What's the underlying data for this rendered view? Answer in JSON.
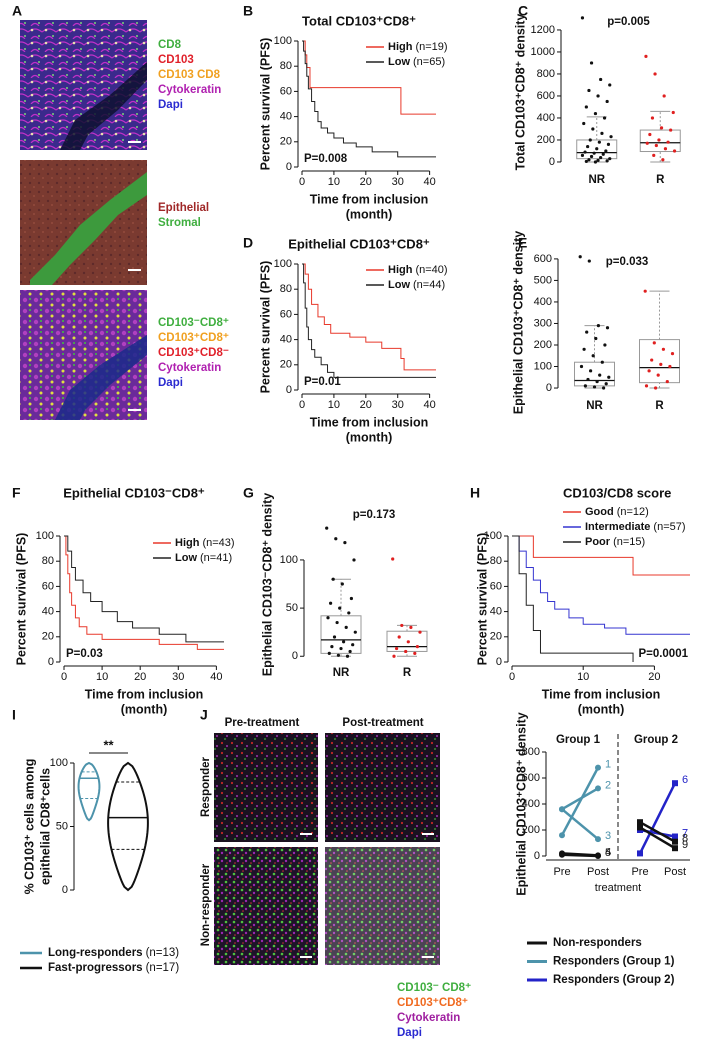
{
  "panel_labels": [
    "A",
    "B",
    "C",
    "D",
    "E",
    "F",
    "G",
    "H",
    "I",
    "J"
  ],
  "panel_a": {
    "legends": [
      [
        {
          "text": "CD8",
          "color": "#3fae3f"
        },
        {
          "text": "CD103",
          "color": "#e0202a"
        },
        {
          "text": "CD103 CD8",
          "color": "#f0a020"
        },
        {
          "text": "Cytokeratin",
          "color": "#b020b0"
        },
        {
          "text": "Dapi",
          "color": "#2a2ad0"
        }
      ],
      [
        {
          "text": "Epithelial",
          "color": "#a02828"
        },
        {
          "text": "Stromal",
          "color": "#3fae3f"
        }
      ],
      [
        {
          "text": "CD103⁻CD8⁺",
          "color": "#3fae3f"
        },
        {
          "text": "CD103⁺CD8⁺",
          "color": "#f0a020"
        },
        {
          "text": "CD103⁺CD8⁻",
          "color": "#e0202a"
        },
        {
          "text": "Cytokeratin",
          "color": "#b020b0"
        },
        {
          "text": "Dapi",
          "color": "#2a2ad0"
        }
      ]
    ]
  },
  "chart_data": [
    {
      "type": "km",
      "panel": "B",
      "title": "Total CD103⁺CD8⁺",
      "ylabel": "Percent survival (PFS)",
      "xlabel": [
        "Time from inclusion",
        "(month)"
      ],
      "pvalue": "P=0.008",
      "xlim": [
        0,
        42
      ],
      "ylim": [
        0,
        100
      ],
      "xticks": [
        0,
        10,
        20,
        30,
        40
      ],
      "yticks": [
        0,
        20,
        40,
        60,
        80,
        100
      ],
      "series": [
        {
          "name": "High",
          "n": "(n=19)",
          "color": "#e8392b",
          "x": [
            0,
            1,
            1,
            1.5,
            1.5,
            2.5,
            2.5,
            31,
            31,
            42
          ],
          "values": [
            100,
            100,
            89,
            89,
            79,
            79,
            63,
            63,
            42,
            42
          ]
        },
        {
          "name": "Low",
          "n": "(n=65)",
          "color": "#222222",
          "x": [
            0,
            0.5,
            0.5,
            1,
            1,
            1.5,
            1.5,
            2,
            2,
            3,
            3,
            4,
            4,
            5,
            5,
            6,
            6,
            8,
            8,
            10,
            10,
            13,
            13,
            17,
            17,
            22,
            22,
            30,
            30,
            42
          ],
          "values": [
            100,
            100,
            92,
            92,
            82,
            82,
            72,
            72,
            62,
            62,
            52,
            52,
            44,
            44,
            36,
            36,
            31,
            31,
            27,
            27,
            23,
            23,
            19,
            19,
            16,
            16,
            12,
            12,
            8,
            8
          ]
        }
      ]
    },
    {
      "type": "box",
      "panel": "C",
      "ylabel": "Total CD103⁺CD8⁺ density",
      "pvalue": "p=0.005",
      "ylim": [
        -73,
        1345
      ],
      "yticks": [
        0,
        200,
        400,
        600,
        800,
        1000,
        1200
      ],
      "groups": [
        {
          "name": "NR",
          "color": "#111111",
          "low": 0,
          "q1": 30,
          "median": 85,
          "q3": 200,
          "high": 410,
          "points": [
            1310,
            900,
            750,
            700,
            650,
            600,
            550,
            500,
            440,
            400,
            350,
            300,
            260,
            230,
            200,
            180,
            160,
            140,
            120,
            100,
            90,
            80,
            70,
            60,
            50,
            40,
            30,
            20,
            15,
            10,
            5,
            0
          ]
        },
        {
          "name": "R",
          "color": "#e02020",
          "low": 0,
          "q1": 95,
          "median": 175,
          "q3": 290,
          "high": 460,
          "points": [
            960,
            800,
            600,
            450,
            400,
            310,
            290,
            250,
            200,
            180,
            170,
            150,
            120,
            100,
            60,
            20
          ]
        }
      ]
    },
    {
      "type": "km",
      "panel": "D",
      "title": "Epithelial CD103⁺CD8⁺",
      "ylabel": "Percent survival (PFS)",
      "xlabel": [
        "Time from inclusion",
        "(month)"
      ],
      "pvalue": "P=0.01",
      "xlim": [
        0,
        42
      ],
      "ylim": [
        0,
        100
      ],
      "xticks": [
        0,
        10,
        20,
        30,
        40
      ],
      "yticks": [
        0,
        20,
        40,
        60,
        80,
        100
      ],
      "series": [
        {
          "name": "High",
          "n": "(n=40)",
          "color": "#e8392b",
          "x": [
            0,
            1,
            1,
            2,
            2,
            3,
            3,
            5,
            5,
            7,
            7,
            9,
            9,
            15,
            15,
            20,
            20,
            25,
            25,
            31,
            31,
            32,
            32,
            42
          ],
          "values": [
            100,
            100,
            92,
            92,
            80,
            80,
            68,
            68,
            58,
            58,
            52,
            52,
            45,
            45,
            42,
            42,
            38,
            38,
            33,
            33,
            25,
            25,
            16,
            16
          ]
        },
        {
          "name": "Low",
          "n": "(n=44)",
          "color": "#222222",
          "x": [
            0,
            0.5,
            0.5,
            1,
            1,
            1.5,
            1.5,
            2,
            2,
            3,
            3,
            4,
            4,
            6,
            6,
            8,
            8,
            10,
            10,
            42
          ],
          "values": [
            100,
            100,
            85,
            85,
            65,
            65,
            50,
            50,
            40,
            40,
            32,
            32,
            26,
            26,
            20,
            20,
            14,
            14,
            10,
            10
          ]
        }
      ]
    },
    {
      "type": "box",
      "panel": "E",
      "ylabel": "Epithelial CD103⁺CD8⁺ density",
      "pvalue": "p=0.033",
      "ylim": [
        -37,
        646
      ],
      "yticks": [
        0,
        100,
        200,
        300,
        400,
        500,
        600
      ],
      "groups": [
        {
          "name": "NR",
          "color": "#111111",
          "low": 0,
          "q1": 10,
          "median": 35,
          "q3": 120,
          "high": 290,
          "points": [
            610,
            590,
            290,
            280,
            260,
            230,
            200,
            180,
            150,
            120,
            100,
            80,
            60,
            50,
            40,
            30,
            20,
            10,
            5,
            0
          ]
        },
        {
          "name": "R",
          "color": "#e02020",
          "low": 0,
          "q1": 25,
          "median": 95,
          "q3": 225,
          "high": 450,
          "points": [
            450,
            210,
            180,
            160,
            130,
            110,
            100,
            80,
            60,
            30,
            10,
            0
          ]
        }
      ]
    },
    {
      "type": "km",
      "panel": "F",
      "title": "Epithelial CD103⁻CD8⁺",
      "ylabel": "Percent survival (PFS)",
      "xlabel": [
        "Time from inclusion",
        "(month)"
      ],
      "pvalue": "P=0.03",
      "xlim": [
        0,
        42
      ],
      "ylim": [
        0,
        100
      ],
      "xticks": [
        0,
        10,
        20,
        30,
        40
      ],
      "yticks": [
        0,
        20,
        40,
        60,
        80,
        100
      ],
      "series": [
        {
          "name": "High",
          "n": "(n=43)",
          "color": "#e8392b",
          "x": [
            0,
            0.5,
            0.5,
            1,
            1,
            1.5,
            1.5,
            2,
            2,
            3,
            3,
            4,
            4,
            6,
            6,
            10,
            10,
            25,
            25,
            35,
            35,
            42
          ],
          "values": [
            100,
            100,
            85,
            85,
            70,
            70,
            55,
            55,
            45,
            45,
            35,
            35,
            28,
            28,
            22,
            22,
            18,
            18,
            14,
            14,
            10,
            10
          ]
        },
        {
          "name": "Low",
          "n": "(n=41)",
          "color": "#222222",
          "x": [
            0,
            1,
            1,
            2,
            2,
            3,
            3,
            5,
            5,
            7,
            7,
            10,
            10,
            14,
            14,
            18,
            18,
            25,
            25,
            32,
            32,
            42
          ],
          "values": [
            100,
            100,
            88,
            88,
            75,
            75,
            65,
            65,
            55,
            55,
            48,
            48,
            40,
            40,
            32,
            32,
            27,
            27,
            22,
            22,
            16,
            16
          ]
        }
      ]
    },
    {
      "type": "box",
      "panel": "G",
      "ylabel": "Epithelial CD103⁻CD8⁺ density",
      "pvalue": "p=0.173",
      "ylim": [
        -7,
        156
      ],
      "yticks": [
        0,
        50,
        100
      ],
      "groups": [
        {
          "name": "NR",
          "color": "#111111",
          "low": 0,
          "q1": 3,
          "median": 17,
          "q3": 42,
          "high": 80,
          "points": [
            133,
            122,
            118,
            100,
            80,
            75,
            60,
            55,
            50,
            45,
            40,
            35,
            30,
            25,
            20,
            15,
            12,
            10,
            8,
            5,
            3,
            1,
            0
          ]
        },
        {
          "name": "R",
          "color": "#e02020",
          "low": 0,
          "q1": 5,
          "median": 10,
          "q3": 26,
          "high": 32,
          "points": [
            101,
            32,
            30,
            25,
            20,
            15,
            10,
            8,
            5,
            3,
            0
          ]
        }
      ]
    },
    {
      "type": "km",
      "panel": "H",
      "legend_title": "CD103/CD8 score",
      "ylabel": "Percent survival (PFS)",
      "xlabel": [
        "Time from inclusion",
        "(month)"
      ],
      "pvalue": "P=0.0001",
      "xlim": [
        0,
        25
      ],
      "ylim": [
        0,
        100
      ],
      "xticks": [
        0,
        10,
        20
      ],
      "yticks": [
        0,
        20,
        40,
        60,
        80,
        100
      ],
      "series": [
        {
          "name": "Good",
          "n": "(n=12)",
          "color": "#e8392b",
          "x": [
            0,
            3,
            3,
            17,
            17,
            25
          ],
          "values": [
            100,
            100,
            83,
            83,
            69,
            69
          ]
        },
        {
          "name": "Intermediate",
          "n": "(n=57)",
          "color": "#3535d0",
          "x": [
            0,
            1,
            1,
            2,
            2,
            3,
            3,
            4,
            4,
            5,
            5,
            6,
            6,
            8,
            8,
            10,
            10,
            13,
            13,
            16,
            16,
            25
          ],
          "values": [
            100,
            100,
            88,
            88,
            75,
            75,
            65,
            65,
            55,
            55,
            48,
            48,
            42,
            42,
            35,
            35,
            30,
            30,
            27,
            27,
            22,
            22
          ]
        },
        {
          "name": "Poor",
          "n": "(n=15)",
          "color": "#222222",
          "x": [
            0,
            1,
            1,
            2,
            2,
            3,
            3,
            4,
            4,
            17,
            17
          ],
          "values": [
            100,
            100,
            70,
            70,
            45,
            45,
            25,
            25,
            7,
            7,
            0
          ]
        }
      ]
    },
    {
      "type": "violin",
      "panel": "I",
      "ylabel": [
        "% CD103⁺ cells among",
        "epithelial CD8⁺cells"
      ],
      "significance": "**",
      "ylim": [
        0,
        100
      ],
      "yticks": [
        0,
        50,
        100
      ],
      "groups": [
        {
          "name": "Long-responders",
          "n": "(n=13)",
          "color": "#4d93ab",
          "min": 55,
          "q1": 72,
          "median": 88,
          "q3": 93,
          "max": 100
        },
        {
          "name": "Fast-progressors",
          "n": "(n=17)",
          "color": "#111111",
          "min": 0,
          "q1": 32,
          "median": 57,
          "q3": 85,
          "max": 100
        }
      ]
    },
    {
      "type": "line",
      "panel": "J",
      "ylabel": "Epithelial CD103⁺CD8⁺ density",
      "xlabel": "treatment",
      "groups": [
        "Group 1",
        "Group 2"
      ],
      "categories": [
        "Pre",
        "Post",
        "Pre",
        "Post"
      ],
      "ylim": [
        0,
        800
      ],
      "yticks": [
        0,
        200,
        400,
        600,
        800
      ],
      "series": [
        {
          "label": "1",
          "color": "#4d93ab",
          "values": [
            160,
            680,
            null,
            null
          ]
        },
        {
          "label": "2",
          "color": "#4d93ab",
          "values": [
            360,
            520,
            null,
            null
          ]
        },
        {
          "label": "3",
          "color": "#4d93ab",
          "values": [
            360,
            130,
            null,
            null
          ]
        },
        {
          "label": "4",
          "color": "#111111",
          "values": [
            20,
            5,
            null,
            null
          ]
        },
        {
          "label": "5",
          "color": "#111111",
          "values": [
            10,
            0,
            null,
            null
          ]
        },
        {
          "label": "6",
          "color": "#2323c8",
          "values": [
            null,
            null,
            20,
            560
          ]
        },
        {
          "label": "7",
          "color": "#2323c8",
          "values": [
            null,
            null,
            200,
            150
          ]
        },
        {
          "label": "8",
          "color": "#111111",
          "values": [
            null,
            null,
            260,
            110
          ]
        },
        {
          "label": "9",
          "color": "#111111",
          "values": [
            null,
            null,
            220,
            60
          ]
        }
      ],
      "legend": [
        {
          "name": "Non-responders",
          "color": "#111111"
        },
        {
          "name": "Responders (Group 1)",
          "color": "#4d93ab"
        },
        {
          "name": "Responders (Group 2)",
          "color": "#2323c8"
        }
      ]
    }
  ],
  "panel_j": {
    "column_headers": [
      "Pre-treatment",
      "Post-treatment"
    ],
    "row_labels": [
      "Responder",
      "Non-responder"
    ],
    "legend": [
      {
        "text": "CD103⁻ CD8⁺",
        "color": "#3fae3f"
      },
      {
        "text": "CD103⁺CD8⁺",
        "color": "#f06a20"
      },
      {
        "text": "Cytokeratin",
        "color": "#a020a0"
      },
      {
        "text": "Dapi",
        "color": "#2a2ad0"
      }
    ]
  }
}
